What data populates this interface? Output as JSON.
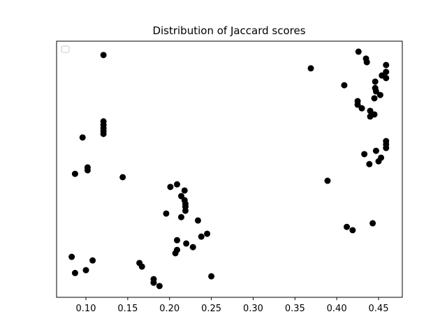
{
  "chart_data": {
    "type": "scatter",
    "title": "Distribution of Jaccard scores",
    "color": "#000000",
    "legend": "upper left",
    "xlim": [
      0.0649,
      0.4784
    ],
    "ylim": [
      0,
      1
    ],
    "xticks": [
      {
        "value": 0.1,
        "label": "0.10"
      },
      {
        "value": 0.15,
        "label": "0.15"
      },
      {
        "value": 0.2,
        "label": "0.20"
      },
      {
        "value": 0.25,
        "label": "0.25"
      },
      {
        "value": 0.3,
        "label": "0.30"
      },
      {
        "value": 0.35,
        "label": "0.35"
      },
      {
        "value": 0.4,
        "label": "0.40"
      },
      {
        "value": 0.45,
        "label": "0.45"
      }
    ],
    "x": [
      0.121,
      0.121,
      0.121,
      0.121,
      0.121,
      0.121,
      0.096,
      0.102,
      0.102,
      0.087,
      0.144,
      0.083,
      0.108,
      0.087,
      0.1,
      0.164,
      0.167,
      0.181,
      0.181,
      0.188,
      0.201,
      0.209,
      0.218,
      0.214,
      0.218,
      0.219,
      0.219,
      0.219,
      0.196,
      0.214,
      0.234,
      0.245,
      0.238,
      0.209,
      0.209,
      0.207,
      0.22,
      0.228,
      0.25,
      0.369,
      0.389,
      0.409,
      0.426,
      0.435,
      0.436,
      0.459,
      0.459,
      0.454,
      0.459,
      0.446,
      0.446,
      0.447,
      0.452,
      0.445,
      0.425,
      0.425,
      0.43,
      0.44,
      0.445,
      0.44,
      0.459,
      0.459,
      0.459,
      0.447,
      0.433,
      0.453,
      0.45,
      0.439,
      0.412,
      0.419,
      0.443
    ],
    "y": [
      0.946,
      0.687,
      0.673,
      0.66,
      0.649,
      0.638,
      0.624,
      0.507,
      0.496,
      0.482,
      0.469,
      0.158,
      0.144,
      0.095,
      0.106,
      0.134,
      0.12,
      0.057,
      0.071,
      0.044,
      0.431,
      0.441,
      0.417,
      0.395,
      0.379,
      0.365,
      0.354,
      0.338,
      0.327,
      0.313,
      0.3,
      0.248,
      0.237,
      0.223,
      0.185,
      0.172,
      0.21,
      0.196,
      0.082,
      0.894,
      0.455,
      0.828,
      0.959,
      0.932,
      0.918,
      0.907,
      0.88,
      0.866,
      0.856,
      0.842,
      0.817,
      0.804,
      0.79,
      0.777,
      0.766,
      0.752,
      0.738,
      0.728,
      0.714,
      0.706,
      0.61,
      0.597,
      0.583,
      0.572,
      0.559,
      0.545,
      0.531,
      0.52,
      0.275,
      0.262,
      0.289
    ]
  }
}
